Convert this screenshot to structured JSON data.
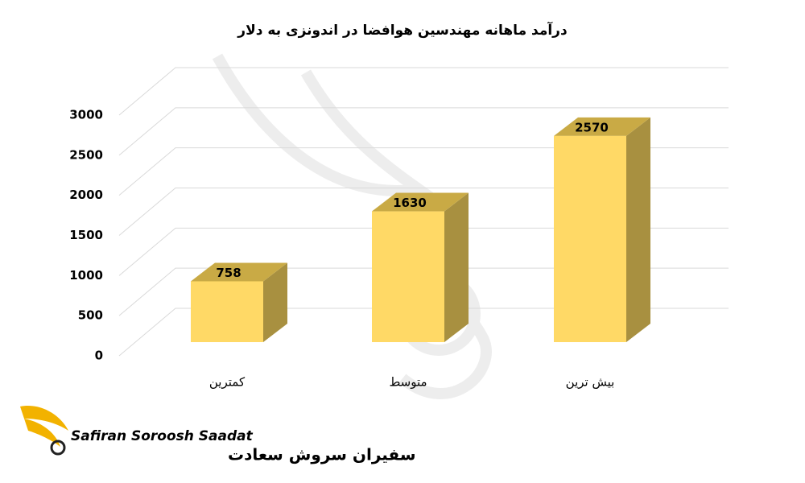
{
  "chart_data": {
    "type": "bar3d",
    "title": "درآمد ماهانه مهندسین هوافضا در اندونزی به دلار",
    "categories": [
      "کمترین",
      "متوسط",
      "بیش ترین"
    ],
    "values": [
      758,
      1630,
      2570
    ],
    "color": "#ffd966",
    "ylim": [
      0,
      3000
    ],
    "yticks": [
      0,
      500,
      1000,
      1500,
      2000,
      2500,
      3000
    ],
    "grid": true,
    "logo_text": [
      "Safiran Soroosh Saadat",
      "سفیران سروش سعادت"
    ]
  }
}
